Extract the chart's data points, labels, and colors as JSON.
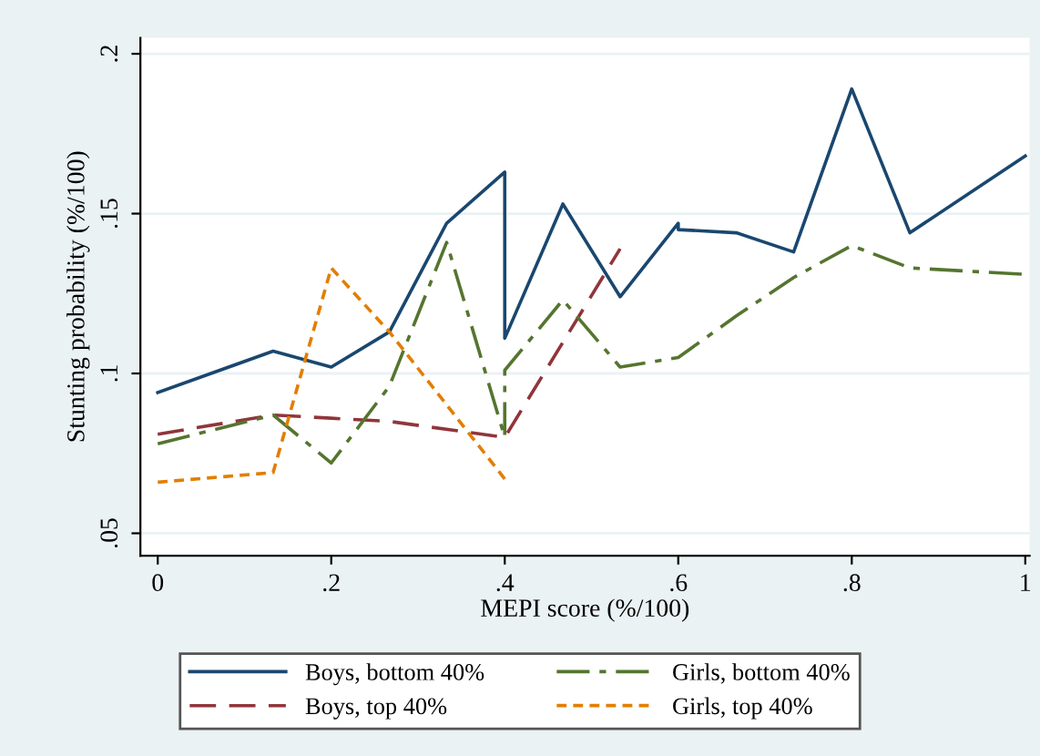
{
  "chart_data": {
    "type": "line",
    "xlabel": "MEPI score (%/100)",
    "ylabel": "Stunting probability (%/100)",
    "xlim": [
      -0.02,
      1.005
    ],
    "ylim": [
      0.043,
      0.205
    ],
    "xticks": [
      {
        "value": 0,
        "label": "0"
      },
      {
        "value": 0.2,
        "label": ".2"
      },
      {
        "value": 0.4,
        "label": ".4"
      },
      {
        "value": 0.6,
        "label": ".6"
      },
      {
        "value": 0.8,
        "label": ".8"
      },
      {
        "value": 1,
        "label": "1"
      }
    ],
    "yticks": [
      {
        "value": 0.05,
        "label": ".05"
      },
      {
        "value": 0.1,
        "label": ".1"
      },
      {
        "value": 0.15,
        "label": ".15"
      },
      {
        "value": 0.2,
        "label": ".2"
      }
    ],
    "grid": "y",
    "legend": "bottom",
    "series": [
      {
        "name": "Boys, bottom 40%",
        "color": "#1a476f",
        "line_style": "solid",
        "x": [
          0,
          0.133,
          0.2,
          0.267,
          0.333,
          0.4,
          0.4,
          0.467,
          0.533,
          0.6,
          0.6,
          0.667,
          0.733,
          0.8,
          0.867,
          1
        ],
        "values": [
          0.094,
          0.107,
          0.102,
          0.113,
          0.147,
          0.163,
          0.111,
          0.153,
          0.124,
          0.147,
          0.145,
          0.144,
          0.138,
          0.189,
          0.144,
          0.168
        ]
      },
      {
        "name": "Boys, top 40%",
        "color": "#90353b",
        "line_style": "dashed",
        "x": [
          0,
          0.133,
          0.2,
          0.267,
          0.4,
          0.533
        ],
        "values": [
          0.081,
          0.087,
          0.086,
          0.085,
          0.08,
          0.139
        ]
      },
      {
        "name": "Girls, bottom 40%",
        "color": "#55752f",
        "line_style": "dashdot",
        "x": [
          0,
          0.133,
          0.2,
          0.267,
          0.333,
          0.4,
          0.4,
          0.467,
          0.533,
          0.6,
          0.667,
          0.733,
          0.8,
          0.867,
          1
        ],
        "values": [
          0.078,
          0.087,
          0.072,
          0.096,
          0.141,
          0.08,
          0.101,
          0.123,
          0.102,
          0.105,
          0.118,
          0.13,
          0.14,
          0.133,
          0.131
        ]
      },
      {
        "name": "Girls, top 40%",
        "color": "#e37e00",
        "line_style": "dashed_fine",
        "x": [
          0,
          0.133,
          0.2,
          0.267,
          0.4
        ],
        "values": [
          0.066,
          0.069,
          0.133,
          0.113,
          0.067
        ]
      }
    ]
  }
}
